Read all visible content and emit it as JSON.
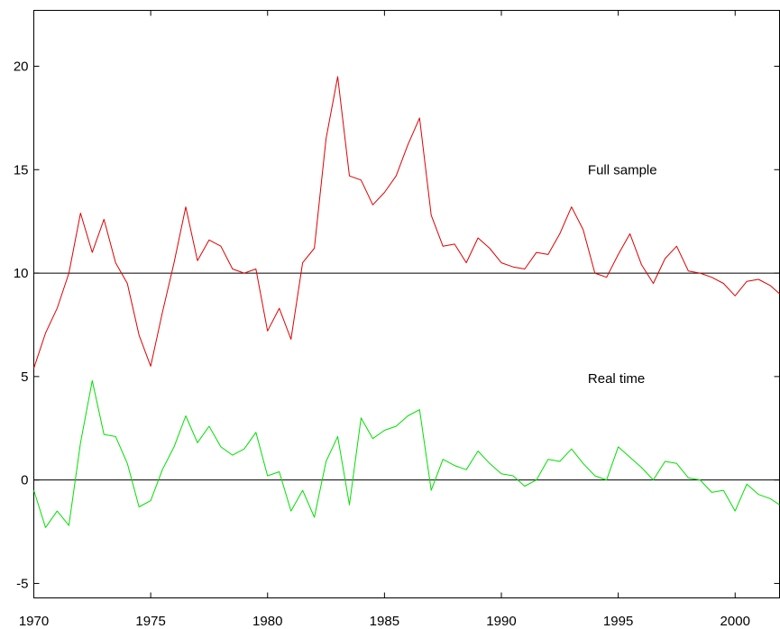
{
  "chart_data": {
    "type": "line",
    "title": "",
    "xlabel": "",
    "ylabel": "",
    "xlim": [
      1970,
      2001.9
    ],
    "ylim": [
      -5.7,
      22.7
    ],
    "xticks": [
      1970,
      1975,
      1980,
      1985,
      1990,
      1995,
      2000
    ],
    "xtick_labels": [
      "1970",
      "1975",
      "1980",
      "1985",
      "1990",
      "1995",
      "2000"
    ],
    "yticks": [
      -5,
      0,
      5,
      10,
      15,
      20
    ],
    "ytick_labels": [
      "-5",
      "0",
      "5",
      "10",
      "15",
      "20"
    ],
    "reference_lines": [
      0,
      10
    ],
    "grid": false,
    "legend": "none",
    "annotations": [
      {
        "text": "Full sample",
        "x": 1993.7,
        "y": 15.0
      },
      {
        "text": "Real time",
        "x": 1993.7,
        "y": 4.9
      }
    ],
    "series": [
      {
        "color": "#e00000",
        "x": [
          1970.0,
          1970.5,
          1971.0,
          1971.5,
          1972.0,
          1972.5,
          1973.0,
          1973.5,
          1974.0,
          1974.5,
          1975.0,
          1975.5,
          1976.0,
          1976.5,
          1977.0,
          1977.5,
          1978.0,
          1978.5,
          1979.0,
          1979.5,
          1980.0,
          1980.5,
          1981.0,
          1981.5,
          1982.0,
          1982.5,
          1983.0,
          1983.5,
          1984.0,
          1984.5,
          1985.0,
          1985.5,
          1986.0,
          1986.5,
          1987.0,
          1987.5,
          1988.0,
          1988.5,
          1989.0,
          1989.5,
          1990.0,
          1990.5,
          1991.0,
          1991.5,
          1992.0,
          1992.5,
          1993.0,
          1993.5,
          1994.0,
          1994.5,
          1995.0,
          1995.5,
          1996.0,
          1996.5,
          1997.0,
          1997.5,
          1998.0,
          1998.5,
          1999.0,
          1999.5,
          2000.0,
          2000.5,
          2001.0,
          2001.5,
          2001.9
        ],
        "values": [
          5.4,
          7.1,
          8.3,
          10.0,
          12.9,
          11.0,
          12.6,
          10.5,
          9.5,
          7.0,
          5.5,
          8.1,
          10.5,
          13.2,
          10.6,
          11.6,
          11.3,
          10.2,
          10.0,
          10.2,
          7.2,
          8.3,
          6.8,
          10.5,
          11.2,
          16.5,
          19.5,
          14.7,
          14.5,
          13.3,
          13.9,
          14.7,
          16.2,
          17.5,
          12.8,
          11.3,
          11.4,
          10.5,
          11.7,
          11.2,
          10.5,
          10.3,
          10.2,
          11.0,
          10.9,
          11.9,
          13.2,
          12.1,
          10.0,
          9.8,
          10.9,
          11.9,
          10.4,
          9.5,
          10.7,
          11.3,
          10.1,
          10.0,
          9.8,
          9.5,
          8.9,
          9.6,
          9.7,
          9.4,
          9.0
        ]
      },
      {
        "color": "#00e000",
        "x": [
          1970.0,
          1970.5,
          1971.0,
          1971.5,
          1972.0,
          1972.5,
          1973.0,
          1973.5,
          1974.0,
          1974.5,
          1975.0,
          1975.5,
          1976.0,
          1976.5,
          1977.0,
          1977.5,
          1978.0,
          1978.5,
          1979.0,
          1979.5,
          1980.0,
          1980.5,
          1981.0,
          1981.5,
          1982.0,
          1982.5,
          1983.0,
          1983.5,
          1984.0,
          1984.5,
          1985.0,
          1985.5,
          1986.0,
          1986.5,
          1987.0,
          1987.5,
          1988.0,
          1988.5,
          1989.0,
          1989.5,
          1990.0,
          1990.5,
          1991.0,
          1991.5,
          1992.0,
          1992.5,
          1993.0,
          1993.5,
          1994.0,
          1994.5,
          1995.0,
          1995.5,
          1996.0,
          1996.5,
          1997.0,
          1997.5,
          1998.0,
          1998.5,
          1999.0,
          1999.5,
          2000.0,
          2000.5,
          2001.0,
          2001.5,
          2001.9
        ],
        "values": [
          -0.5,
          -2.3,
          -1.5,
          -2.2,
          1.8,
          4.8,
          2.2,
          2.1,
          0.8,
          -1.3,
          -1.0,
          0.5,
          1.6,
          3.1,
          1.8,
          2.6,
          1.6,
          1.2,
          1.5,
          2.3,
          0.2,
          0.4,
          -1.5,
          -0.5,
          -1.8,
          0.9,
          2.1,
          -1.2,
          3.0,
          2.0,
          2.4,
          2.6,
          3.1,
          3.4,
          -0.5,
          1.0,
          0.7,
          0.5,
          1.4,
          0.8,
          0.3,
          0.2,
          -0.3,
          0.0,
          1.0,
          0.9,
          1.5,
          0.8,
          0.2,
          0.0,
          1.6,
          1.1,
          0.6,
          0.0,
          0.9,
          0.8,
          0.1,
          0.0,
          -0.6,
          -0.5,
          -1.5,
          -0.2,
          -0.7,
          -0.9,
          -1.2
        ]
      }
    ]
  }
}
